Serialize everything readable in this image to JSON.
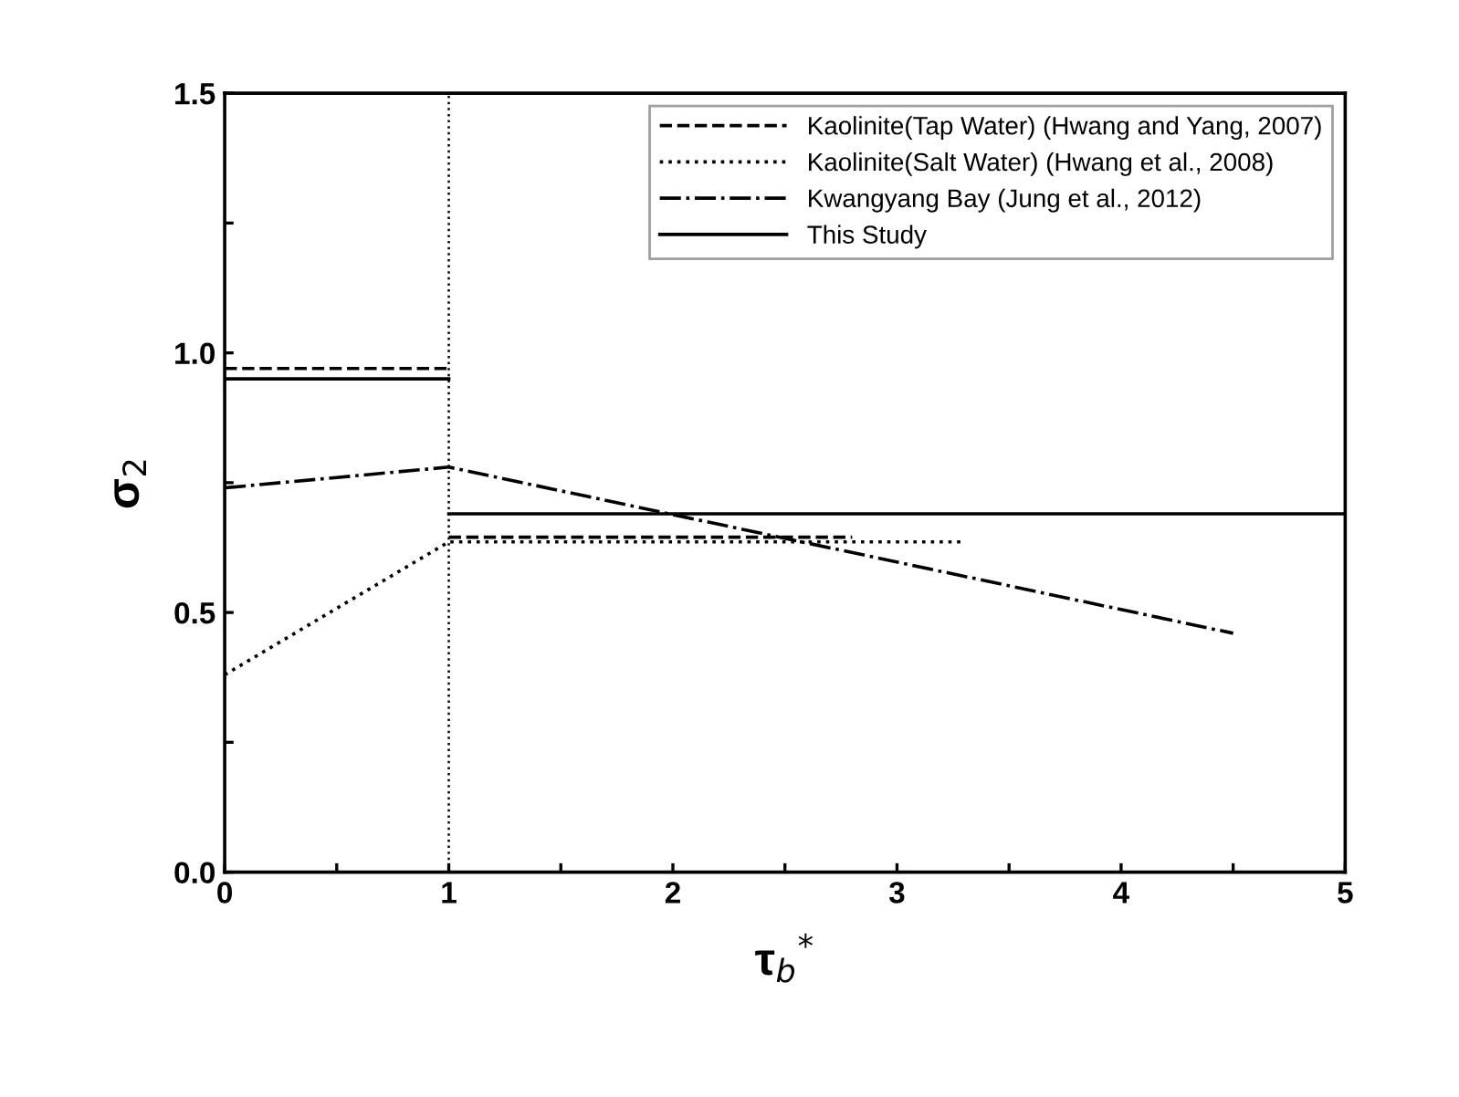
{
  "chart_data": {
    "type": "line",
    "xlabel": "τ$_{b}$$^{*}$",
    "ylabel": "σ$_{2}$",
    "xlim": [
      0,
      5
    ],
    "ylim": [
      0,
      1.5
    ],
    "xticks": [
      0,
      {
        "value": 0.5,
        "label": null
      },
      1,
      {
        "value": 1.5,
        "label": null
      },
      2,
      {
        "value": 2.5,
        "label": null
      },
      3,
      {
        "value": 3.5,
        "label": null
      },
      4,
      {
        "value": 4.5,
        "label": null
      },
      5
    ],
    "yticks": [
      {
        "value": 0,
        "label": "0.0"
      },
      {
        "value": 0.25,
        "label": null
      },
      0.5,
      {
        "value": 0.75,
        "label": null
      },
      {
        "value": 1,
        "label": "1.0"
      },
      {
        "value": 1.25,
        "label": null
      },
      1.5
    ],
    "grid": false,
    "legend": "top right",
    "marker": "none",
    "ref_lines": [
      {
        "axis": "x",
        "value": 1,
        "color": "#000000",
        "line_style": "dotted"
      }
    ],
    "series": [
      {
        "name": "Kaolinite(Tap Water) (Hwang and Yang, 2007)",
        "color": "#000000",
        "line_style": "dashed",
        "x": [
          0,
          1
        ],
        "values": [
          0.97,
          0.97
        ]
      },
      {
        "color": "#000000",
        "line_style": "dashed",
        "x": [
          1,
          2.8
        ],
        "values": [
          0.645,
          0.645
        ]
      },
      {
        "name": "Kaolinite(Salt Water) (Hwang et al., 2008)",
        "color": "#000000",
        "line_style": "dotted",
        "x": [
          0,
          1,
          3.3
        ],
        "values": [
          0.38,
          0.636,
          0.636
        ]
      },
      {
        "name": "Kwangyang Bay (Jung et al., 2012)",
        "color": "#000000",
        "line_style": "dashdot",
        "x": [
          0,
          1,
          4.5
        ],
        "values": [
          0.74,
          0.78,
          0.46
        ]
      },
      {
        "name": "This Study",
        "color": "#000000",
        "line_style": "solid",
        "x": [
          0,
          1
        ],
        "values": [
          0.95,
          0.95
        ]
      },
      {
        "color": "#000000",
        "line_style": "solid",
        "x": [
          1,
          5
        ],
        "values": [
          0.69,
          0.69
        ]
      }
    ]
  }
}
